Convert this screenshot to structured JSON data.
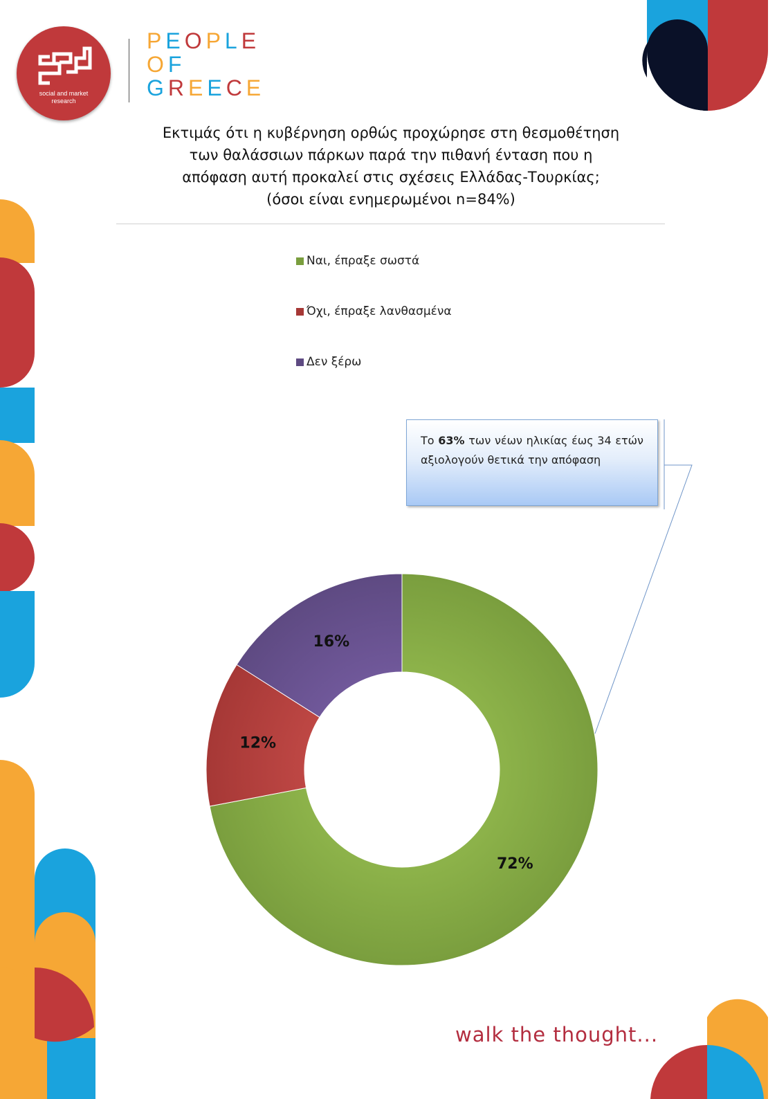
{
  "logo": {
    "tagline_line1": "social and market",
    "tagline_line2": "research"
  },
  "brand": {
    "lines": [
      {
        "letters": [
          "P",
          "E",
          "O",
          "P",
          "L",
          "E"
        ],
        "colors": [
          "#f6a735",
          "#1aa3dd",
          "#c0393b",
          "#f6a735",
          "#1aa3dd",
          "#c0393b"
        ]
      },
      {
        "letters": [
          "O",
          "F"
        ],
        "colors": [
          "#f6a735",
          "#1aa3dd"
        ]
      },
      {
        "letters": [
          "G",
          "R",
          "E",
          "E",
          "C",
          "E"
        ],
        "colors": [
          "#1aa3dd",
          "#c0393b",
          "#f6a735",
          "#1aa3dd",
          "#c0393b",
          "#f6a735"
        ]
      }
    ]
  },
  "title": {
    "line1": "Εκτιμάς ότι η κυβέρνηση ορθώς προχώρησε στη θεσμοθέτηση",
    "line2": "των θαλάσσιων πάρκων παρά την πιθανή ένταση που η",
    "line3": "απόφαση αυτή προκαλεί στις σχέσεις Ελλάδας-Τουρκίας;",
    "line4": "(όσοι είναι ενημερωμένοι n=84%)"
  },
  "callout": {
    "prefix": "Το ",
    "highlight": "63%",
    "rest": " των νέων ηλικίας έως 34 ετών αξιολογούν θετικά την απόφαση"
  },
  "chart_data": {
    "type": "pie",
    "variant": "doughnut",
    "title": "",
    "legend_position": "top",
    "slices": [
      {
        "label": "Ναι, έπραξε σωστά",
        "value": 72,
        "value_label": "72%",
        "color": "#7a9e3e",
        "color_light": "#8db34a"
      },
      {
        "label": "Όχι, έπραξε λανθασμένα",
        "value": 12,
        "value_label": "12%",
        "color": "#a63836",
        "color_light": "#be4744"
      },
      {
        "label": "Δεν ξέρω",
        "value": 16,
        "value_label": "16%",
        "color": "#5e4a82",
        "color_light": "#70589a"
      }
    ]
  },
  "footer": {
    "slogan": "walk the thought..."
  },
  "colors": {
    "brand_red": "#c0393b",
    "brand_orange": "#f6a735",
    "brand_blue": "#1aa3dd",
    "brand_navy": "#0a1128",
    "slogan": "#b32d3f"
  }
}
